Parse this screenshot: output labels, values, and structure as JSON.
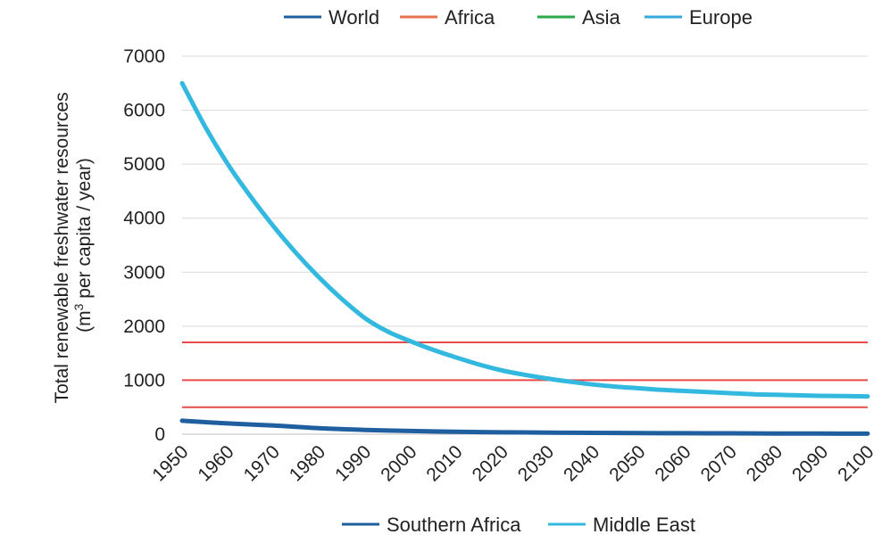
{
  "chart_data": {
    "type": "line",
    "xlabel": "",
    "ylabel_line1": "Total renewable freshwater resources",
    "ylabel_line2_prefix": "(m",
    "ylabel_line2_sup": "3",
    "ylabel_line2_suffix": " per capita / year)",
    "xlim": [
      1950,
      2100
    ],
    "ylim": [
      0,
      7000
    ],
    "x_ticks": [
      "1950",
      "1960",
      "1970",
      "1980",
      "1990",
      "2000",
      "2010",
      "2020",
      "2030",
      "2040",
      "2050",
      "2060",
      "2070",
      "2080",
      "2090",
      "2100"
    ],
    "y_ticks": [
      "0",
      "1000",
      "2000",
      "3000",
      "4000",
      "5000",
      "6000",
      "7000"
    ],
    "grid": "horizontal",
    "legend_top": [
      {
        "name": "World",
        "color": "#1f5fa0"
      },
      {
        "name": "Africa",
        "color": "#e8704a"
      },
      {
        "name": "Asia",
        "color": "#2aa84a"
      },
      {
        "name": "Europe",
        "color": "#33a9dc"
      }
    ],
    "legend_bottom": [
      {
        "name": "Southern Africa",
        "color": "#1f5fa0"
      },
      {
        "name": "Middle East",
        "color": "#33b8e0"
      }
    ],
    "series": [
      {
        "name": "Middle East",
        "color": "#33b8e0",
        "x": [
          1950,
          1955,
          1960,
          1965,
          1970,
          1975,
          1980,
          1985,
          1990,
          1995,
          2000,
          2005,
          2010,
          2015,
          2020,
          2025,
          2030,
          2035,
          2040,
          2045,
          2050,
          2055,
          2060,
          2065,
          2070,
          2075,
          2080,
          2085,
          2090,
          2095,
          2100
        ],
        "values": [
          6500,
          5700,
          5000,
          4400,
          3850,
          3350,
          2900,
          2500,
          2150,
          1900,
          1720,
          1560,
          1420,
          1290,
          1180,
          1100,
          1030,
          970,
          920,
          880,
          850,
          820,
          800,
          780,
          760,
          740,
          730,
          720,
          710,
          705,
          700
        ]
      },
      {
        "name": "Southern Africa",
        "color": "#1f5fa0",
        "x": [
          1950,
          1960,
          1970,
          1980,
          1990,
          2000,
          2010,
          2020,
          2030,
          2040,
          2050,
          2060,
          2070,
          2080,
          2090,
          2100
        ],
        "values": [
          250,
          200,
          160,
          110,
          80,
          60,
          45,
          35,
          30,
          25,
          20,
          18,
          16,
          14,
          12,
          10
        ]
      }
    ],
    "reference_lines": [
      {
        "y": 1700,
        "color": "#e84a4a"
      },
      {
        "y": 1000,
        "color": "#e84a4a"
      },
      {
        "y": 500,
        "color": "#e84a4a"
      }
    ]
  }
}
